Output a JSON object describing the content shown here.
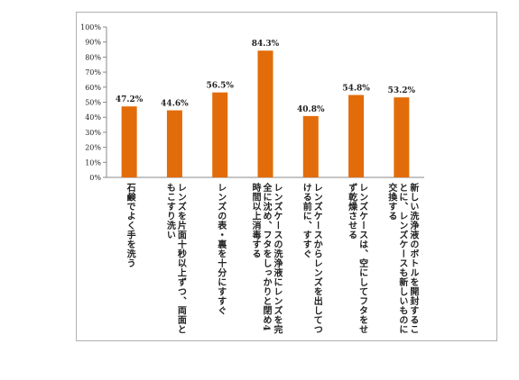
{
  "chart_data": {
    "type": "bar",
    "categories": [
      "石鹸でよく手を洗う",
      "レンズを片面十秒以上ずつ、両面ともこすり洗い",
      "レンズの表・裏を十分にすすぐ",
      "レンズケースの洗浄液にレンズを完全に沈め、フタをしっかりと閉め4時間以上消毒する",
      "レンズケースからレンズを出してつける前に、すすぐ",
      "レンズケースは、空にしてフタをせず乾燥させる",
      "新しい洗浄液のボトルを開封することに、レンズケースも新しいものに交換する"
    ],
    "values": [
      47.2,
      44.6,
      56.5,
      84.3,
      40.8,
      54.8,
      53.2
    ],
    "value_labels": [
      "47.2%",
      "44.6%",
      "56.5%",
      "84.3%",
      "40.8%",
      "54.8%",
      "53.2%"
    ],
    "y_ticks": [
      "0%",
      "10%",
      "20%",
      "30%",
      "40%",
      "50%",
      "60%",
      "70%",
      "80%",
      "90%",
      "100%"
    ],
    "ylim": [
      0,
      100
    ],
    "bar_color": "#e36c0a",
    "grid": false,
    "legend": "none"
  }
}
